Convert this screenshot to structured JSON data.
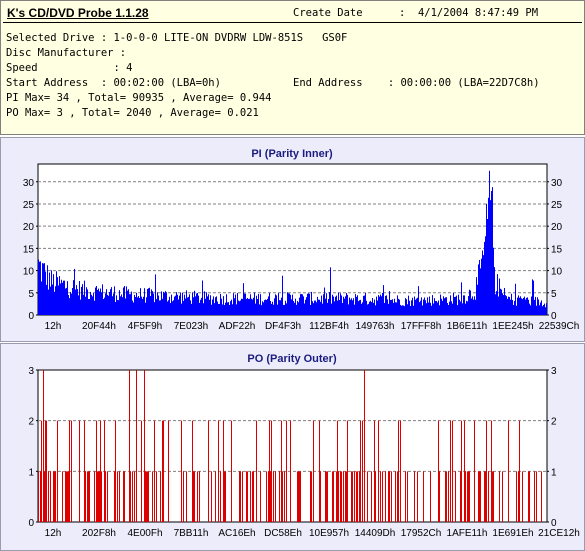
{
  "header": {
    "app_title": "K's CD/DVD Probe 1.1.28",
    "create_date_label": "Create Date",
    "create_date_value": ":  4/1/2004 8:47:49 PM",
    "selected_drive": "Selected Drive : 1-0-0-0 LITE-ON DVDRW LDW-851S   GS0F",
    "disc_manufacturer": "Disc Manufacturer :",
    "speed": "Speed            : 4",
    "start_address": "Start Address  : 00:02:00 (LBA=0h)",
    "end_address": "End Address    : 00:00:00 (LBA=22D7C8h)",
    "pi_stats": "PI Max= 34 , Total= 90935 , Average= 0.944",
    "po_stats": "PO Max= 3 , Total= 2040 , Average= 0.021"
  },
  "colors": {
    "bar": "#0000ff",
    "po_bar": "#dd0000",
    "grid": "#808080",
    "panel_bg": "#ececfb",
    "title": "#1c1c80"
  },
  "chart_data": [
    {
      "type": "bar",
      "title": "PI (Parity Inner)",
      "ylim": [
        0,
        34
      ],
      "yticks": [
        0,
        5,
        10,
        15,
        20,
        25,
        30
      ],
      "grid": true,
      "x_tick_labels": [
        "12h",
        "20F44h",
        "4F5F9h",
        "7E023h",
        "ADF22h",
        "DF4F3h",
        "112BF4h",
        "149763h",
        "17FFF8h",
        "1B6E11h",
        "1EE245h",
        "22539Ch"
      ],
      "xlim_lba": [
        18,
        2283464
      ],
      "profile": {
        "description_points_lba": [
          0,
          60000,
          200000,
          400000,
          800000,
          1400000,
          1700000,
          1900000,
          1960000,
          1990000,
          2010000,
          2030000,
          2050000,
          2100000,
          2283464
        ],
        "typical_values": [
          12,
          8,
          6,
          5,
          4,
          4,
          3.5,
          4,
          6,
          12,
          20,
          30,
          8,
          4,
          3
        ]
      },
      "max": 34,
      "average": 0.944
    },
    {
      "type": "bar",
      "title": "PO (Parity Outer)",
      "ylim": [
        0,
        3
      ],
      "yticks": [
        0,
        1,
        2,
        3
      ],
      "grid": true,
      "x_tick_labels": [
        "12h",
        "202F8h",
        "4E00Fh",
        "7BB11h",
        "AC16Eh",
        "DC58Eh",
        "10E957h",
        "14409Dh",
        "17952Ch",
        "1AFE11h",
        "1E691Eh",
        "21CE12h"
      ],
      "xlim_lba": [
        18,
        2283464
      ],
      "max": 3,
      "average": 0.021
    }
  ]
}
